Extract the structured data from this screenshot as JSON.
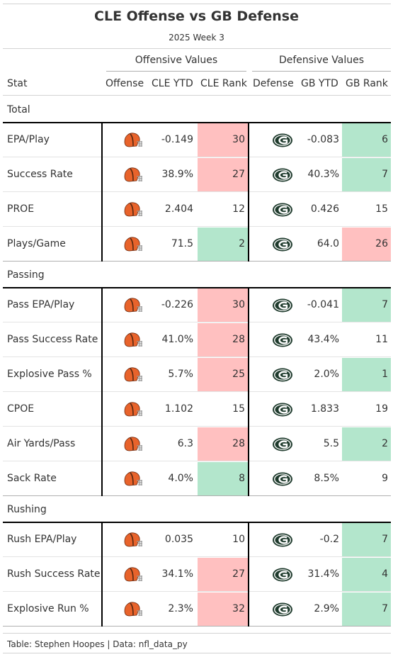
{
  "title": "CLE Offense vs GB Defense",
  "subtitle": "2025 Week 3",
  "footer": "Table: Stephen Hoopes | Data: nfl_data_py",
  "spanners": {
    "offense": "Offensive Values",
    "defense": "Defensive Values"
  },
  "columns": {
    "stat": "Stat",
    "offense": "Offense",
    "cle_ytd": "CLE YTD",
    "cle_rank": "CLE Rank",
    "defense": "Defense",
    "gb_ytd": "GB YTD",
    "gb_rank": "GB Rank"
  },
  "colors": {
    "good": "#b3e6cc",
    "bad": "#ffc0c0",
    "browns_helmet": "#e8632b",
    "packers_green": "#1f3b2d",
    "packers_gold": "#ffb612"
  },
  "chart_data": {
    "type": "table",
    "groups": [
      {
        "name": "Total",
        "rows": [
          {
            "stat": "EPA/Play",
            "cle_ytd": "-0.149",
            "cle_rank": "30",
            "cle_rank_color": "bad",
            "gb_ytd": "-0.083",
            "gb_rank": "6",
            "gb_rank_color": "good"
          },
          {
            "stat": "Success Rate",
            "cle_ytd": "38.9%",
            "cle_rank": "27",
            "cle_rank_color": "bad",
            "gb_ytd": "40.3%",
            "gb_rank": "7",
            "gb_rank_color": "good"
          },
          {
            "stat": "PROE",
            "cle_ytd": "2.404",
            "cle_rank": "12",
            "cle_rank_color": "none",
            "gb_ytd": "0.426",
            "gb_rank": "15",
            "gb_rank_color": "none"
          },
          {
            "stat": "Plays/Game",
            "cle_ytd": "71.5",
            "cle_rank": "2",
            "cle_rank_color": "good",
            "gb_ytd": "64.0",
            "gb_rank": "26",
            "gb_rank_color": "bad"
          }
        ]
      },
      {
        "name": "Passing",
        "rows": [
          {
            "stat": "Pass EPA/Play",
            "cle_ytd": "-0.226",
            "cle_rank": "30",
            "cle_rank_color": "bad",
            "gb_ytd": "-0.041",
            "gb_rank": "7",
            "gb_rank_color": "good"
          },
          {
            "stat": "Pass Success Rate",
            "cle_ytd": "41.0%",
            "cle_rank": "28",
            "cle_rank_color": "bad",
            "gb_ytd": "43.4%",
            "gb_rank": "11",
            "gb_rank_color": "none"
          },
          {
            "stat": "Explosive Pass %",
            "cle_ytd": "5.7%",
            "cle_rank": "25",
            "cle_rank_color": "bad",
            "gb_ytd": "2.0%",
            "gb_rank": "1",
            "gb_rank_color": "good"
          },
          {
            "stat": "CPOE",
            "cle_ytd": "1.102",
            "cle_rank": "15",
            "cle_rank_color": "none",
            "gb_ytd": "1.833",
            "gb_rank": "19",
            "gb_rank_color": "none"
          },
          {
            "stat": "Air Yards/Pass",
            "cle_ytd": "6.3",
            "cle_rank": "28",
            "cle_rank_color": "bad",
            "gb_ytd": "5.5",
            "gb_rank": "2",
            "gb_rank_color": "good"
          },
          {
            "stat": "Sack Rate",
            "cle_ytd": "4.0%",
            "cle_rank": "8",
            "cle_rank_color": "good",
            "gb_ytd": "8.5%",
            "gb_rank": "9",
            "gb_rank_color": "none"
          }
        ]
      },
      {
        "name": "Rushing",
        "rows": [
          {
            "stat": "Rush EPA/Play",
            "cle_ytd": "0.035",
            "cle_rank": "10",
            "cle_rank_color": "none",
            "gb_ytd": "-0.2",
            "gb_rank": "7",
            "gb_rank_color": "good"
          },
          {
            "stat": "Rush Success Rate",
            "cle_ytd": "34.1%",
            "cle_rank": "27",
            "cle_rank_color": "bad",
            "gb_ytd": "31.4%",
            "gb_rank": "4",
            "gb_rank_color": "good"
          },
          {
            "stat": "Explosive Run %",
            "cle_ytd": "2.3%",
            "cle_rank": "32",
            "cle_rank_color": "bad",
            "gb_ytd": "2.9%",
            "gb_rank": "7",
            "gb_rank_color": "good"
          }
        ]
      }
    ]
  }
}
